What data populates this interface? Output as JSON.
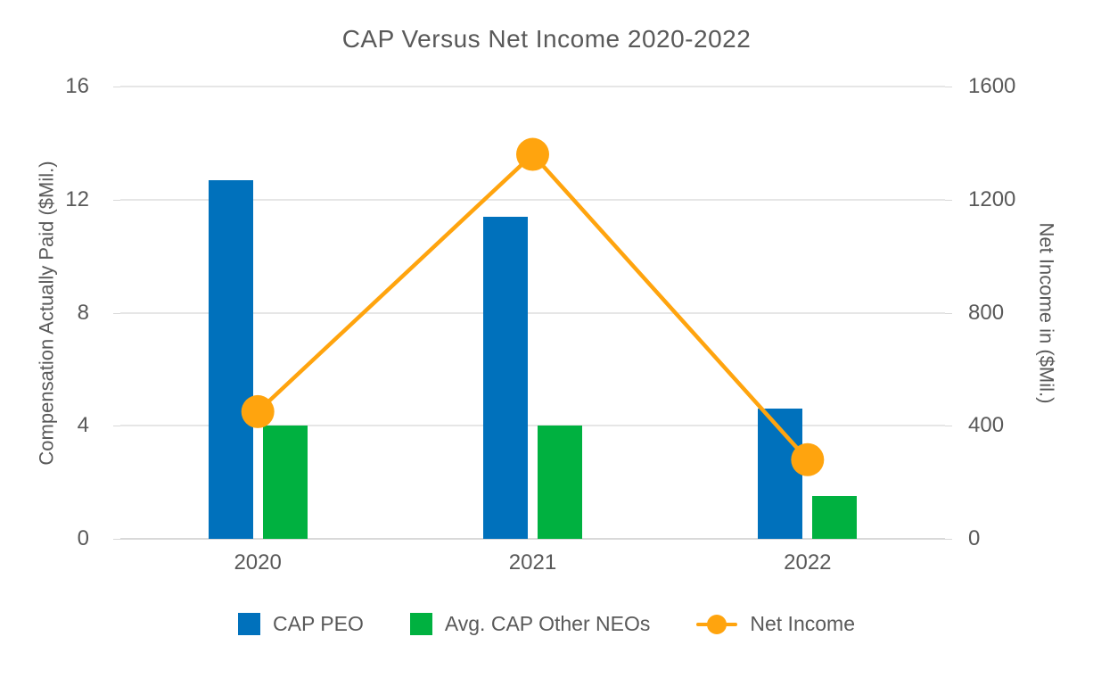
{
  "chart_data": {
    "type": "combo-bar-line",
    "title": "CAP Versus Net Income 2020-2022",
    "categories": [
      "2020",
      "2021",
      "2022"
    ],
    "series": [
      {
        "name": "CAP PEO",
        "type": "bar",
        "axis": "left",
        "color": "#0071BC",
        "values": [
          12.7,
          11.4,
          4.6
        ]
      },
      {
        "name": "Avg. CAP Other NEOs",
        "type": "bar",
        "axis": "left",
        "color": "#00B140",
        "values": [
          4.0,
          4.0,
          1.5
        ]
      },
      {
        "name": "Net Income",
        "type": "line",
        "axis": "right",
        "color": "#FFA40E",
        "values": [
          450,
          1360,
          280
        ]
      }
    ],
    "left_axis": {
      "label": "Compensation Actually Paid ($Mil.)",
      "ticks": [
        0,
        4,
        8,
        12,
        16
      ],
      "range": [
        0,
        16
      ]
    },
    "right_axis": {
      "label": "Net Income in ($Mil.)",
      "ticks": [
        0,
        400,
        800,
        1200,
        1600
      ],
      "range": [
        0,
        1600
      ]
    },
    "grid": true,
    "legend_position": "bottom",
    "colors": {
      "text": "#595959",
      "gridline": "#E6E6E6",
      "baseline": "#D9D9D9",
      "background": "#FFFFFF"
    }
  }
}
